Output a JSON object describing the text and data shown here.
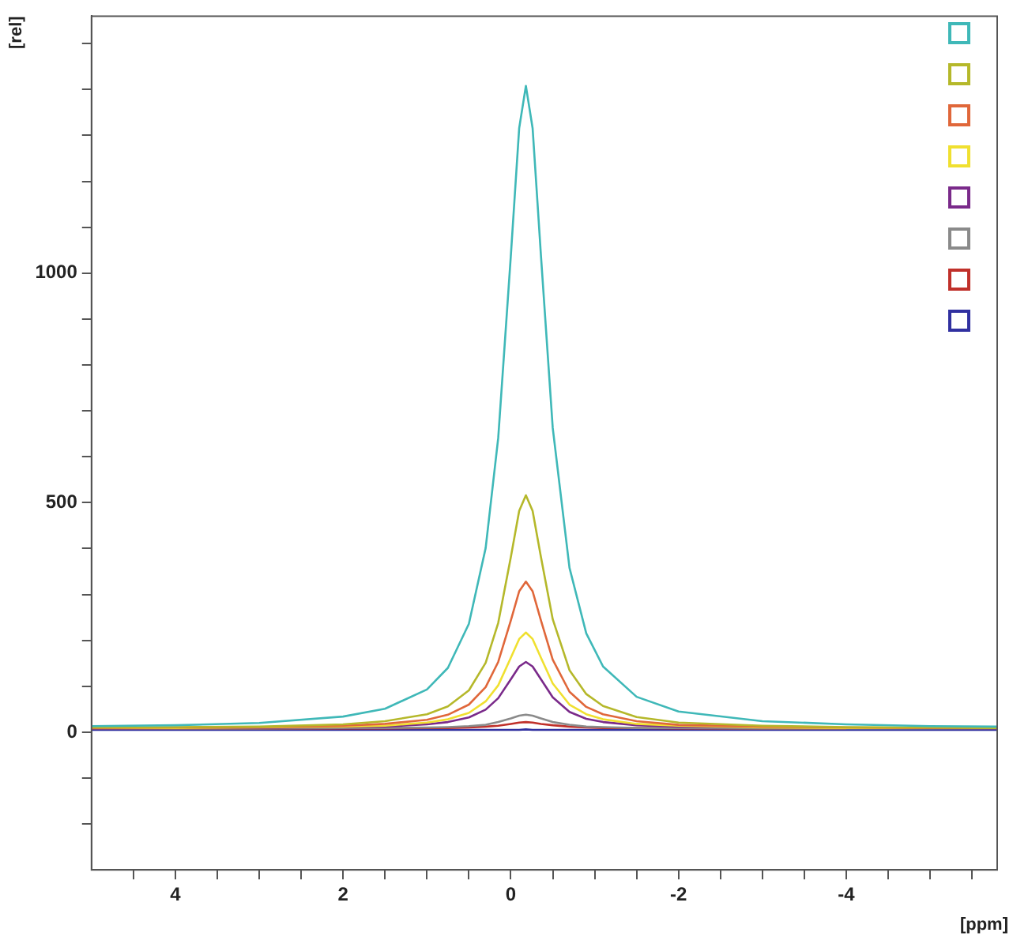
{
  "chart_data": {
    "type": "line",
    "xlabel": "[ppm]",
    "ylabel": "[rel]",
    "x": [
      5,
      4,
      3,
      2,
      1.5,
      1,
      0.75,
      0.5,
      0.3,
      0.15,
      0,
      -0.1,
      -0.18,
      -0.26,
      -0.36,
      -0.5,
      -0.7,
      -0.9,
      -1.1,
      -1.5,
      -2,
      -3,
      -4,
      -5,
      -5.8
    ],
    "series": [
      {
        "color": "#3fb8b8",
        "values": [
          13,
          15,
          20,
          34,
          51,
          93,
          140,
          236,
          401,
          641,
          1037,
          1316,
          1408,
          1316,
          1037,
          663,
          358,
          215,
          143,
          77,
          45,
          24,
          17,
          13,
          12
        ]
      },
      {
        "color": "#b5b82a",
        "values": [
          10,
          11,
          12,
          17,
          24,
          39,
          56,
          91,
          151,
          238,
          381,
          482,
          516,
          482,
          381,
          246,
          135,
          83,
          57,
          33,
          21,
          14,
          11,
          10,
          9
        ]
      },
      {
        "color": "#e0673a",
        "values": [
          9,
          10,
          11,
          14,
          18,
          27,
          38,
          60,
          98,
          153,
          243,
          307,
          328,
          307,
          243,
          158,
          88,
          55,
          39,
          24,
          16,
          12,
          10,
          9,
          9
        ]
      },
      {
        "color": "#f0e030",
        "values": [
          9,
          9,
          10,
          12,
          14,
          21,
          28,
          42,
          67,
          102,
          162,
          203,
          217,
          203,
          162,
          106,
          60,
          39,
          28,
          18,
          14,
          10,
          9,
          9,
          9
        ]
      },
      {
        "color": "#7a2a8a",
        "values": [
          8,
          9,
          9,
          11,
          12,
          17,
          22,
          32,
          49,
          74,
          115,
          143,
          153,
          143,
          115,
          76,
          44,
          29,
          22,
          15,
          12,
          10,
          9,
          9,
          8
        ]
      },
      {
        "color": "#8a8a8a",
        "values": [
          8,
          8,
          8,
          9,
          9,
          10,
          11,
          13,
          16,
          22,
          30,
          36,
          38,
          36,
          30,
          22,
          16,
          12,
          11,
          9,
          9,
          8,
          8,
          8,
          8
        ]
      },
      {
        "color": "#c0302a",
        "values": [
          8,
          8,
          8,
          8,
          8,
          9,
          9,
          10,
          12,
          14,
          18,
          21,
          22,
          21,
          18,
          15,
          12,
          10,
          9,
          9,
          8,
          8,
          8,
          null,
          null
        ]
      },
      {
        "color": "#3030a0",
        "values": [
          5,
          5,
          5,
          5,
          5,
          5,
          5,
          5,
          5,
          5,
          5,
          5,
          6,
          5,
          5,
          5,
          5,
          5,
          5,
          5,
          5,
          5,
          5,
          5,
          5
        ]
      }
    ],
    "xlim": [
      5,
      -5.8
    ],
    "xticks": [
      {
        "value": 4.5,
        "label": null
      },
      {
        "value": 4,
        "label": "4"
      },
      {
        "value": 3.5,
        "label": null
      },
      {
        "value": 3,
        "label": null
      },
      {
        "value": 2.5,
        "label": null
      },
      {
        "value": 2,
        "label": "2"
      },
      {
        "value": 1.5,
        "label": null
      },
      {
        "value": 1,
        "label": null
      },
      {
        "value": 0.5,
        "label": null
      },
      {
        "value": 0,
        "label": "0"
      },
      {
        "value": -0.5,
        "label": null
      },
      {
        "value": -1,
        "label": null
      },
      {
        "value": -1.5,
        "label": null
      },
      {
        "value": -2,
        "label": "-2"
      },
      {
        "value": -2.5,
        "label": null
      },
      {
        "value": -3,
        "label": null
      },
      {
        "value": -3.5,
        "label": null
      },
      {
        "value": -4,
        "label": "-4"
      },
      {
        "value": -4.5,
        "label": null
      },
      {
        "value": -5,
        "label": null
      },
      {
        "value": -5.5,
        "label": null
      }
    ],
    "ylim": [
      -300,
      1560
    ],
    "yticks": [
      {
        "value": -200,
        "label": null
      },
      {
        "value": -100,
        "label": null
      },
      0,
      {
        "value": 100,
        "label": null
      },
      {
        "value": 200,
        "label": null
      },
      {
        "value": 300,
        "label": null
      },
      {
        "value": 400,
        "label": null
      },
      500,
      {
        "value": 600,
        "label": null
      },
      {
        "value": 700,
        "label": null
      },
      {
        "value": 800,
        "label": null
      },
      {
        "value": 900,
        "label": null
      },
      1000,
      {
        "value": 1100,
        "label": null
      },
      {
        "value": 1200,
        "label": null
      },
      {
        "value": 1300,
        "label": null
      },
      {
        "value": 1400,
        "label": null
      },
      {
        "value": 1500,
        "label": null
      }
    ],
    "grid": false,
    "marker": "none",
    "line_style": "solid"
  }
}
